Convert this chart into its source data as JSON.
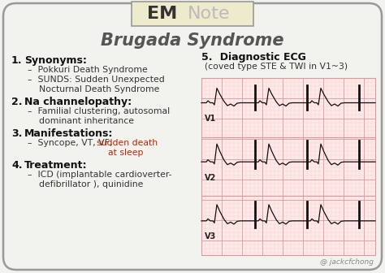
{
  "bg_color": "#f2f2ee",
  "border_color": "#999999",
  "title": "Brugada Syndrome",
  "title_color": "#555555",
  "em_color": "#333333",
  "note_color": "#bbbbbb",
  "logo_bg": "#eeeacc",
  "logo_border": "#999999",
  "section_color": "#111111",
  "bullet_color": "#333333",
  "red_color": "#cc2200",
  "ecg_bg": "#ffe8e8",
  "ecg_grid_major": "#dd9999",
  "ecg_grid_minor": "#f2cccc",
  "ecg_trace_color": "#111111",
  "credit_color": "#888888",
  "sections": [
    {
      "num": "1.",
      "heading": "Synonyms:",
      "bullets": [
        "–  Pokkuri Death Syndrome",
        "–  SUNDS: Sudden Unexpected\n    Nocturnal Death Syndrome"
      ]
    },
    {
      "num": "2.",
      "heading": "Na channelopathy:",
      "bullets": [
        "–  Familial clustering, autosomal\n    dominant inheritance"
      ]
    },
    {
      "num": "3.",
      "heading": "Manifestations:",
      "bullet_pre": "–  Syncope, VT, VF, ",
      "bullet_red": "sudden death\n    at sleep"
    },
    {
      "num": "4.",
      "heading": "Treatment:",
      "bullets": [
        "–  ICD (implantable cardioverter-\n    defibrillator ), quinidine"
      ]
    }
  ],
  "diag_num": "5.",
  "diag_heading": "  Diagnostic ECG",
  "diag_sub": "(coved type STE & TWI in V1~3)",
  "ecg_labels": [
    "V1",
    "V2",
    "V3"
  ],
  "credit": "@ jackcfchong",
  "figw": 4.74,
  "figh": 3.36,
  "dpi": 100
}
